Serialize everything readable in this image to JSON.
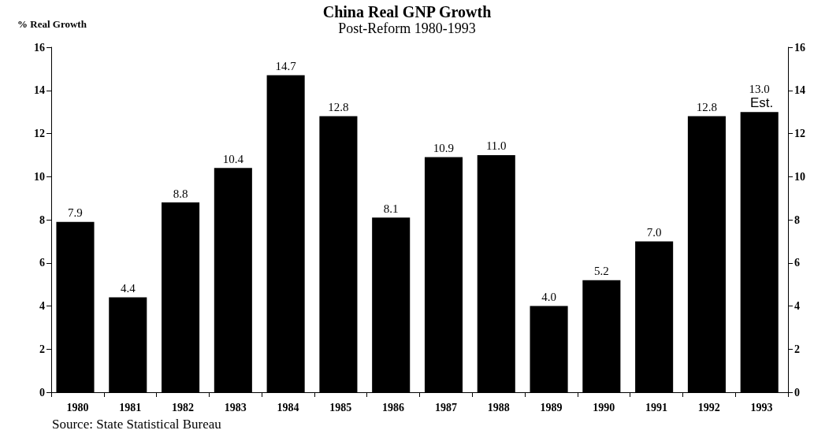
{
  "chart_data": {
    "type": "bar",
    "title": "China Real GNP Growth",
    "subtitle": "Post-Reform 1980-1993",
    "ylabel": "% Real Growth",
    "categories": [
      "1980",
      "1981",
      "1982",
      "1983",
      "1984",
      "1985",
      "1986",
      "1987",
      "1988",
      "1989",
      "1990",
      "1991",
      "1992",
      "1993"
    ],
    "values": [
      7.9,
      4.4,
      8.8,
      10.4,
      14.7,
      12.8,
      8.1,
      10.9,
      11.0,
      4.0,
      5.2,
      7.0,
      12.8,
      13.0
    ],
    "value_labels": [
      "7.9",
      "4.4",
      "8.8",
      "10.4",
      "14.7",
      "12.8",
      "8.1",
      "10.9",
      "11.0",
      "4.0",
      "5.2",
      "7.0",
      "12.8",
      "13.0"
    ],
    "color": "#000000",
    "ylim": [
      0,
      16
    ],
    "yticks": [
      0,
      2,
      4,
      6,
      8,
      10,
      12,
      14,
      16
    ],
    "y2lim": [
      0,
      16
    ],
    "y2ticks": [
      0,
      2,
      4,
      6,
      8,
      10,
      12,
      14,
      16
    ],
    "grid": false,
    "annotations": [
      {
        "text": "Est.",
        "x": "1993",
        "y": 13.0
      },
      "Source: State Statistical Bureau"
    ]
  }
}
